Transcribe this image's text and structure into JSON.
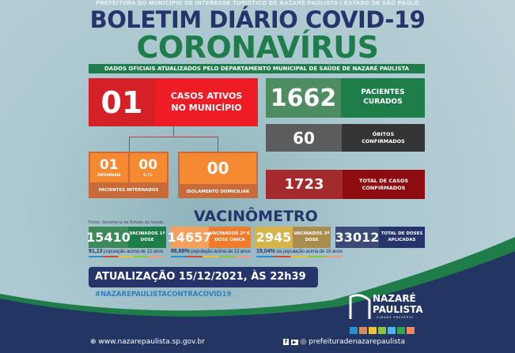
{
  "header": {
    "top_line": "PREFEITURA DO MUNICÍPIO DE INTERESSE TURÍSTICO DE NAZARÉ PAULISTA  |  ESTADO DE SÃO PAULO",
    "title": "BOLETIM DIÁRIO COVID-19",
    "subtitle": "CORONAVÍRUS",
    "strip": "DADOS OFICIAIS ATUALIZADOS PELO DEPARTAMENTO MUNICIPAL DE SAÚDE DE NAZARÉ PAULISTA"
  },
  "active": {
    "value": "01",
    "label": "CASOS ATIVOS NO MUNICÍPIO"
  },
  "hospital": {
    "enfermaria": "01",
    "enfermaria_label": "ENFERMARIA",
    "uti": "00",
    "uti_label": "U.T.I.",
    "label": "PACIENTES INTERNADOS"
  },
  "isolation": {
    "value": "00",
    "label": "ISOLAMENTO DOMICILIAR"
  },
  "recovered": {
    "value": "1662",
    "label": "PACIENTES CURADOS"
  },
  "deaths": {
    "value": "60",
    "label": "ÓBITOS CONFIRMADOS"
  },
  "total": {
    "value": "1723",
    "label": "TOTAL DE CASOS CONFIRMADOS"
  },
  "vaccine": {
    "title": "VACINÔMETRO",
    "source": "Fonte: Secretaria de Estado da Saúde",
    "items": [
      {
        "value": "15410",
        "label": "VACINADOS 1ª DOSE",
        "pct": "91,13",
        "pct_text": "população acima de 12 anos",
        "color": "#1f7d4a"
      },
      {
        "value": "14657",
        "label": "VACINADOS 2ª E DOSE ÚNICA",
        "pct": "86,68%",
        "pct_text": "população acima de 12 anos",
        "color": "#f7883a"
      },
      {
        "value": "2945",
        "label": "VACINADOS 3ª DOSE",
        "pct": "19,04%",
        "pct_text": "da população acima de 18 anos",
        "color": "#c9a83a"
      },
      {
        "value": "33012",
        "label": "TOTAL DE DOSES APLICADAS",
        "color": "#2b3d6f"
      }
    ]
  },
  "update": {
    "text": "ATUALIZAÇÃO 15/12/2021, ÀS 22h39",
    "hashtag": "#NAZAREPAULISTACONTRACOVID19"
  },
  "logo": {
    "line1": "NAZARÉ",
    "line2": "PAULISTA",
    "tagline": "CIDADE PRESÉPIO"
  },
  "footer": {
    "website": "www.nazarepaulista.sp.gov.br",
    "social": "prefeituradenazarepaulista"
  }
}
